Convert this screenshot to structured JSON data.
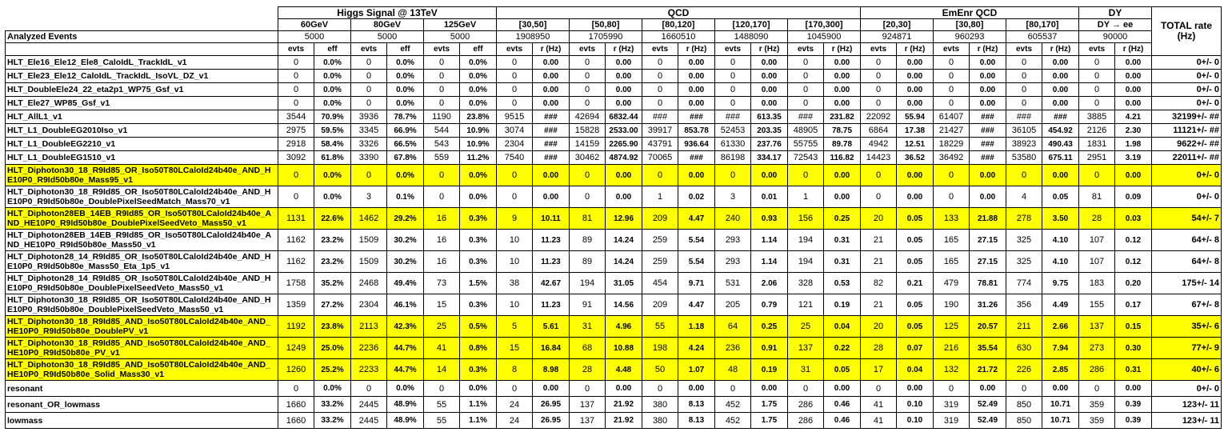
{
  "table": {
    "analyzed_events_label": "Analyzed Events",
    "total_header": "TOTAL rate (Hz)",
    "sub_headers": {
      "evts": "evts",
      "eff": "eff",
      "rate": "r (Hz)"
    },
    "highlight_color": "#ffff00",
    "groups": [
      {
        "label": "Higgs Signal @ 13TeV",
        "rate_type": "eff",
        "bins": [
          {
            "label": "60GeV",
            "analyzed": "5000"
          },
          {
            "label": "80GeV",
            "analyzed": "5000"
          },
          {
            "label": "125GeV",
            "analyzed": "5000"
          }
        ]
      },
      {
        "label": "QCD",
        "rate_type": "rate",
        "bins": [
          {
            "label": "[30,50]",
            "analyzed": "1908950"
          },
          {
            "label": "[50,80]",
            "analyzed": "1705990"
          },
          {
            "label": "[80,120]",
            "analyzed": "1660510"
          },
          {
            "label": "[120,170]",
            "analyzed": "1488090"
          },
          {
            "label": "[170,300]",
            "analyzed": "1045900"
          }
        ]
      },
      {
        "label": "EmEnr QCD",
        "rate_type": "rate",
        "bins": [
          {
            "label": "[20,30]",
            "analyzed": "924871"
          },
          {
            "label": "[30,80]",
            "analyzed": "960293"
          },
          {
            "label": "[80,170]",
            "analyzed": "605537"
          }
        ]
      },
      {
        "label": "DY",
        "rate_type": "rate",
        "bins": [
          {
            "label": "DY → ee",
            "analyzed": "90000"
          }
        ]
      }
    ],
    "rows": [
      {
        "name": "HLT_Ele16_Ele12_Ele8_CaloIdL_TrackIdL_v1",
        "highlight": false,
        "values": [
          "0",
          "0.0%",
          "0",
          "0.0%",
          "0",
          "0.0%",
          "0",
          "0.00",
          "0",
          "0.00",
          "0",
          "0.00",
          "0",
          "0.00",
          "0",
          "0.00",
          "0",
          "0.00",
          "0",
          "0.00",
          "0",
          "0.00",
          "0",
          "0.00"
        ],
        "total": "0+/- 0"
      },
      {
        "name": "HLT_Ele23_Ele12_CaloIdL_TrackIdL_IsoVL_DZ_v1",
        "highlight": false,
        "values": [
          "0",
          "0.0%",
          "0",
          "0.0%",
          "0",
          "0.0%",
          "0",
          "0.00",
          "0",
          "0.00",
          "0",
          "0.00",
          "0",
          "0.00",
          "0",
          "0.00",
          "0",
          "0.00",
          "0",
          "0.00",
          "0",
          "0.00",
          "0",
          "0.00"
        ],
        "total": "0+/- 0"
      },
      {
        "name": "HLT_DoubleEle24_22_eta2p1_WP75_Gsf_v1",
        "highlight": false,
        "values": [
          "0",
          "0.0%",
          "0",
          "0.0%",
          "0",
          "0.0%",
          "0",
          "0.00",
          "0",
          "0.00",
          "0",
          "0.00",
          "0",
          "0.00",
          "0",
          "0.00",
          "0",
          "0.00",
          "0",
          "0.00",
          "0",
          "0.00",
          "0",
          "0.00"
        ],
        "total": "0+/- 0"
      },
      {
        "name": "HLT_Ele27_WP85_Gsf_v1",
        "highlight": false,
        "values": [
          "0",
          "0.0%",
          "0",
          "0.0%",
          "0",
          "0.0%",
          "0",
          "0.00",
          "0",
          "0.00",
          "0",
          "0.00",
          "0",
          "0.00",
          "0",
          "0.00",
          "0",
          "0.00",
          "0",
          "0.00",
          "0",
          "0.00",
          "0",
          "0.00"
        ],
        "total": "0+/- 0"
      },
      {
        "name": "HLT_AllL1_v1",
        "highlight": false,
        "values": [
          "3544",
          "70.9%",
          "3936",
          "78.7%",
          "1190",
          "23.8%",
          "9515",
          "###",
          "42694",
          "6832.44",
          "###",
          "###",
          "###",
          "613.35",
          "###",
          "231.82",
          "22092",
          "55.94",
          "61407",
          "###",
          "###",
          "###",
          "3885",
          "4.21"
        ],
        "total": "32199+/- ##"
      },
      {
        "name": "HLT_L1_DoubleEG2010Iso_v1",
        "highlight": false,
        "values": [
          "2975",
          "59.5%",
          "3345",
          "66.9%",
          "544",
          "10.9%",
          "3074",
          "###",
          "15828",
          "2533.00",
          "39917",
          "853.78",
          "52453",
          "203.35",
          "48905",
          "78.75",
          "6864",
          "17.38",
          "21427",
          "###",
          "36105",
          "454.92",
          "2126",
          "2.30"
        ],
        "total": "11121+/- ##"
      },
      {
        "name": "HLT_L1_DoubleEG2210_v1",
        "highlight": false,
        "values": [
          "2918",
          "58.4%",
          "3326",
          "66.5%",
          "543",
          "10.9%",
          "2304",
          "###",
          "14159",
          "2265.90",
          "43791",
          "936.64",
          "61330",
          "237.76",
          "55755",
          "89.78",
          "4942",
          "12.51",
          "18229",
          "###",
          "38923",
          "490.43",
          "1831",
          "1.98"
        ],
        "total": "9622+/- ##"
      },
      {
        "name": "HLT_L1_DoubleEG1510_v1",
        "highlight": false,
        "values": [
          "3092",
          "61.8%",
          "3390",
          "67.8%",
          "559",
          "11.2%",
          "7540",
          "###",
          "30462",
          "4874.92",
          "70065",
          "###",
          "86198",
          "334.17",
          "72543",
          "116.82",
          "14423",
          "36.52",
          "36492",
          "###",
          "53580",
          "675.11",
          "2951",
          "3.19"
        ],
        "total": "22011+/- ##"
      },
      {
        "name": "HLT_Diphoton30_18_R9Id85_OR_Iso50T80LCaloId24b40e_AND_HE10P0_R9Id50b80e_Mass95_v1",
        "highlight": true,
        "values": [
          "0",
          "0.0%",
          "0",
          "0.0%",
          "0",
          "0.0%",
          "0",
          "0.00",
          "0",
          "0.00",
          "0",
          "0.00",
          "0",
          "0.00",
          "0",
          "0.00",
          "0",
          "0.00",
          "0",
          "0.00",
          "0",
          "0.00",
          "0",
          "0.00"
        ],
        "total": "0+/- 0"
      },
      {
        "name": "HLT_Diphoton30_18_R9Id85_OR_Iso50T80LCaloId24b40e_AND_HE10P0_R9Id50b80e_DoublePixelSeedMatch_Mass70_v1",
        "highlight": false,
        "values": [
          "0",
          "0.0%",
          "3",
          "0.1%",
          "0",
          "0.0%",
          "0",
          "0.00",
          "0",
          "0.00",
          "1",
          "0.02",
          "3",
          "0.01",
          "1",
          "0.00",
          "0",
          "0.00",
          "0",
          "0.00",
          "4",
          "0.05",
          "81",
          "0.09"
        ],
        "total": "0+/- 0"
      },
      {
        "name": "HLT_Diphoton28EB_14EB_R9Id85_OR_Iso50T80LCaloId24b40e_AND_HE10P0_R9Id50b80e_DoublePixelSeedVeto_Mass50_v1",
        "highlight": true,
        "values": [
          "1131",
          "22.6%",
          "1462",
          "29.2%",
          "16",
          "0.3%",
          "9",
          "10.11",
          "81",
          "12.96",
          "209",
          "4.47",
          "240",
          "0.93",
          "156",
          "0.25",
          "20",
          "0.05",
          "133",
          "21.88",
          "278",
          "3.50",
          "28",
          "0.03"
        ],
        "total": "54+/- 7"
      },
      {
        "name": "HLT_Diphoton28EB_14EB_R9Id85_OR_Iso50T80LCaloId24b40e_AND_HE10P0_R9Id50b80e_Mass50_v1",
        "highlight": false,
        "values": [
          "1162",
          "23.2%",
          "1509",
          "30.2%",
          "16",
          "0.3%",
          "10",
          "11.23",
          "89",
          "14.24",
          "259",
          "5.54",
          "293",
          "1.14",
          "194",
          "0.31",
          "21",
          "0.05",
          "165",
          "27.15",
          "325",
          "4.10",
          "107",
          "0.12"
        ],
        "total": "64+/- 8"
      },
      {
        "name": "HLT_Diphoton28_14_R9Id85_OR_Iso50T80LCaloId24b40e_AND_HE10P0_R9Id50b80e_Mass50_Eta_1p5_v1",
        "highlight": false,
        "values": [
          "1162",
          "23.2%",
          "1509",
          "30.2%",
          "16",
          "0.3%",
          "10",
          "11.23",
          "89",
          "14.24",
          "259",
          "5.54",
          "293",
          "1.14",
          "194",
          "0.31",
          "21",
          "0.05",
          "165",
          "27.15",
          "325",
          "4.10",
          "107",
          "0.12"
        ],
        "total": "64+/- 8"
      },
      {
        "name": "HLT_Diphoton28_14_R9Id85_OR_Iso50T80LCaloId24b40e_AND_HE10P0_R9Id50b80e_DoublePixelSeedVeto_Mass50_v1",
        "highlight": false,
        "values": [
          "1758",
          "35.2%",
          "2468",
          "49.4%",
          "73",
          "1.5%",
          "38",
          "42.67",
          "194",
          "31.05",
          "454",
          "9.71",
          "531",
          "2.06",
          "328",
          "0.53",
          "82",
          "0.21",
          "479",
          "78.81",
          "774",
          "9.75",
          "183",
          "0.20"
        ],
        "total": "175+/- 14"
      },
      {
        "name": "HLT_Diphoton30_18_R9Id85_OR_Iso50T80LCaloId24b40e_AND_HE10P0_R9Id50b80e_DoublePixelSeedVeto_Mass50_v1",
        "highlight": false,
        "values": [
          "1359",
          "27.2%",
          "2304",
          "46.1%",
          "15",
          "0.3%",
          "10",
          "11.23",
          "91",
          "14.56",
          "209",
          "4.47",
          "205",
          "0.79",
          "121",
          "0.19",
          "21",
          "0.05",
          "190",
          "31.26",
          "356",
          "4.49",
          "155",
          "0.17"
        ],
        "total": "67+/- 8"
      },
      {
        "name": "HLT_Diphoton30_18_R9Id85_AND_Iso50T80LCaloId24b40e_AND_HE10P0_R9Id50b80e_DoublePV_v1",
        "highlight": true,
        "values": [
          "1192",
          "23.8%",
          "2113",
          "42.3%",
          "25",
          "0.5%",
          "5",
          "5.61",
          "31",
          "4.96",
          "55",
          "1.18",
          "64",
          "0.25",
          "25",
          "0.04",
          "20",
          "0.05",
          "125",
          "20.57",
          "211",
          "2.66",
          "137",
          "0.15"
        ],
        "total": "35+/- 6"
      },
      {
        "name": "HLT_Diphoton30_18_R9Id85_AND_Iso50T80LCaloId24b40e_AND_HE10P0_R9Id50b80e_PV_v1",
        "highlight": true,
        "values": [
          "1249",
          "25.0%",
          "2236",
          "44.7%",
          "41",
          "0.8%",
          "15",
          "16.84",
          "68",
          "10.88",
          "198",
          "4.24",
          "236",
          "0.91",
          "137",
          "0.22",
          "28",
          "0.07",
          "216",
          "35.54",
          "630",
          "7.94",
          "273",
          "0.30"
        ],
        "total": "77+/- 9"
      },
      {
        "name": "HLT_Diphoton30_18_R9Id85_AND_Iso50T80LCaloId24b40e_AND_HE10P0_R9Id50b80e_Solid_Mass30_v1",
        "highlight": true,
        "values": [
          "1260",
          "25.2%",
          "2233",
          "44.7%",
          "14",
          "0.3%",
          "8",
          "8.98",
          "28",
          "4.48",
          "50",
          "1.07",
          "48",
          "0.19",
          "31",
          "0.05",
          "17",
          "0.04",
          "132",
          "21.72",
          "226",
          "2.85",
          "286",
          "0.31"
        ],
        "total": "40+/- 6"
      },
      {
        "name": "resonant",
        "highlight": false,
        "values": [
          "0",
          "0.0%",
          "0",
          "0.0%",
          "0",
          "0.0%",
          "0",
          "0.00",
          "0",
          "0.00",
          "0",
          "0.00",
          "0",
          "0.00",
          "0",
          "0.00",
          "0",
          "0.00",
          "0",
          "0.00",
          "0",
          "0.00",
          "0",
          "0.00"
        ],
        "total": "0+/- 0"
      },
      {
        "name": "resonant_OR_lowmass",
        "highlight": false,
        "values": [
          "1660",
          "33.2%",
          "2445",
          "48.9%",
          "55",
          "1.1%",
          "24",
          "26.95",
          "137",
          "21.92",
          "380",
          "8.13",
          "452",
          "1.75",
          "286",
          "0.46",
          "41",
          "0.10",
          "319",
          "52.49",
          "850",
          "10.71",
          "359",
          "0.39"
        ],
        "total": "123+/- 11"
      },
      {
        "name": "lowmass",
        "highlight": false,
        "values": [
          "1660",
          "33.2%",
          "2445",
          "48.9%",
          "55",
          "1.1%",
          "24",
          "26.95",
          "137",
          "21.92",
          "380",
          "8.13",
          "452",
          "1.75",
          "286",
          "0.46",
          "41",
          "0.10",
          "319",
          "52.49",
          "850",
          "10.71",
          "359",
          "0.39"
        ],
        "total": "123+/- 11"
      }
    ]
  }
}
